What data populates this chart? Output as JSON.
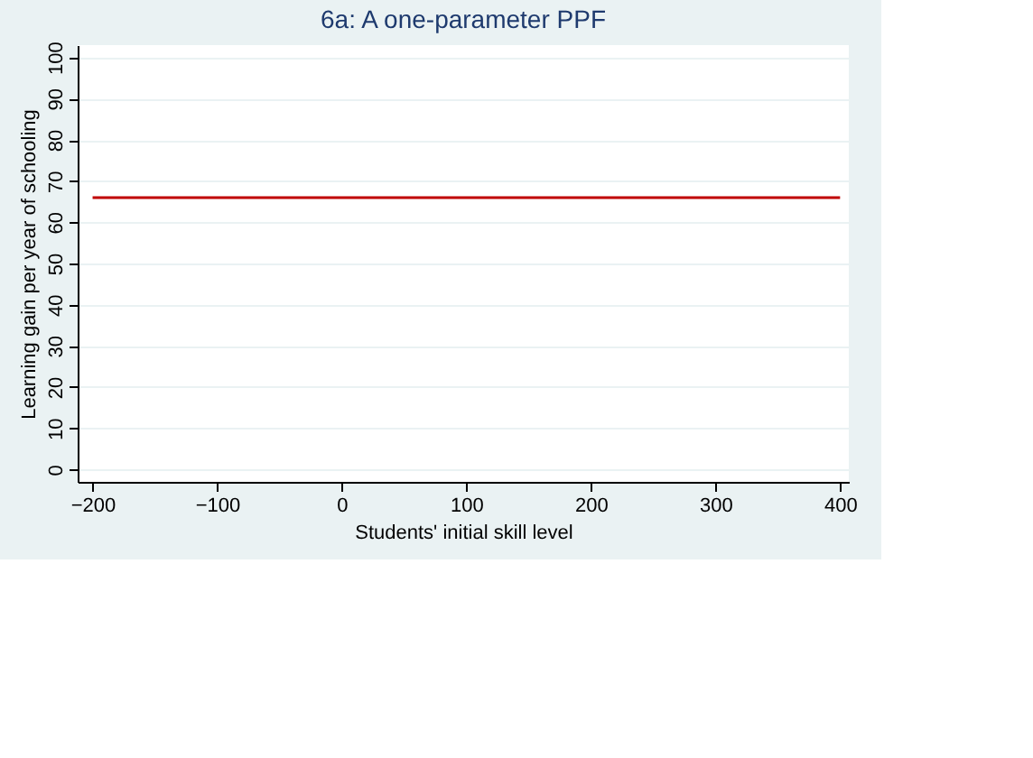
{
  "chart_data": {
    "type": "line",
    "title": "6a: A one-parameter PPF",
    "xlabel": "Students' initial skill level",
    "ylabel": "Learning gain per year of schooling",
    "x": [
      -200,
      400
    ],
    "series": [
      {
        "color": "#c00000",
        "values": [
          66,
          66
        ]
      }
    ],
    "xlim": [
      -212,
      407
    ],
    "ylim": [
      -3,
      103
    ],
    "xticks": [
      -200,
      -100,
      0,
      100,
      200,
      300,
      400
    ],
    "yticks": [
      0,
      10,
      20,
      30,
      40,
      50,
      60,
      70,
      80,
      90,
      100
    ],
    "grid": "y",
    "legend": false,
    "marker": "none",
    "line_style": "solid"
  }
}
